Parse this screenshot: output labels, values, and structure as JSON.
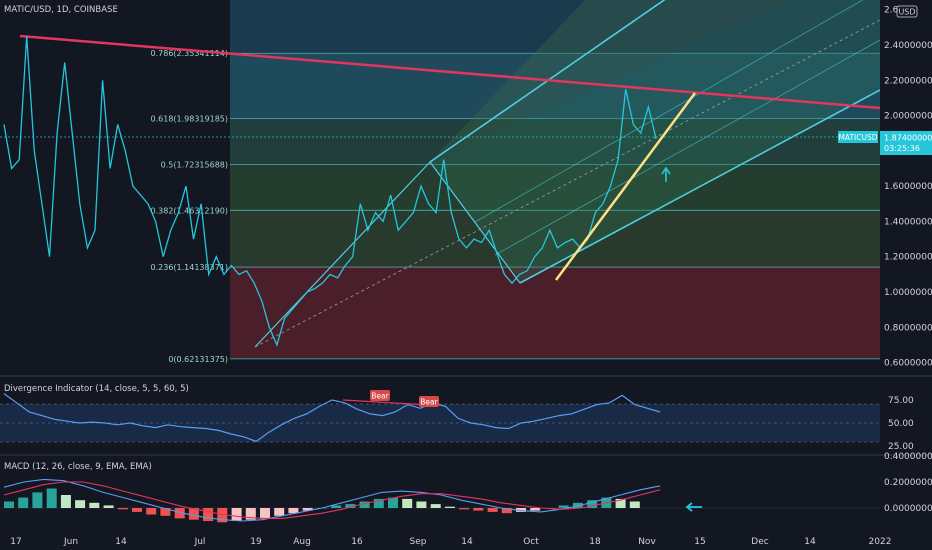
{
  "header": {
    "title": "MATIC/USD, 1D, COINBASE",
    "currency_badge": "USD"
  },
  "price_tag": {
    "symbol": "MATICUSD",
    "price": "1.87400000",
    "countdown": "03:25:36"
  },
  "colors": {
    "background": "#131722",
    "price_line": "#26c6da",
    "trend_line": "#e2365e",
    "channel": "#4dd0e1",
    "highlight_line": "#ffe082",
    "fib_line": "#4dd0c8",
    "red_zone": "#5d1f2b"
  },
  "fib_levels": [
    {
      "label": "0.786(2.35341114)",
      "value": 2.3534
    },
    {
      "label": "0.618(1.98319185)",
      "value": 1.9832
    },
    {
      "label": "0.5(1.72315688)",
      "value": 1.7232
    },
    {
      "label": "0.382(1.46312190)",
      "value": 1.4631
    },
    {
      "label": "0.236(1.14138371)",
      "value": 1.1414
    },
    {
      "label": "0(0.62131375)",
      "value": 0.6213
    }
  ],
  "chart_data": [
    {
      "type": "line",
      "x_ticks": [
        "17",
        "Jun",
        "14",
        "Jul",
        "19",
        "Aug",
        "16",
        "Sep",
        "14",
        "Oct",
        "18",
        "Nov",
        "15",
        "Dec",
        "14",
        "2022"
      ],
      "y_ticks": [
        "2.6",
        "2.40000000",
        "2.20000000",
        "2.00000000",
        "1.80000000",
        "1.60000000",
        "1.40000000",
        "1.20000000",
        "1.00000000",
        "0.80000000",
        "0.60000000"
      ],
      "ylim": [
        0.6,
        2.6
      ],
      "series": [
        {
          "name": "MATIC/USD",
          "values": [
            1.95,
            1.7,
            1.75,
            2.45,
            1.8,
            1.5,
            1.2,
            1.9,
            2.3,
            1.9,
            1.5,
            1.25,
            1.35,
            2.2,
            1.7,
            1.95,
            1.8,
            1.6,
            1.55,
            1.5,
            1.4,
            1.2,
            1.35,
            1.45,
            1.6,
            1.3,
            1.5,
            1.1,
            1.2,
            1.1,
            1.15,
            1.1,
            1.12,
            1.05,
            0.95,
            0.8,
            0.7,
            0.85,
            0.9,
            0.95,
            1.0,
            1.02,
            1.05,
            1.1,
            1.08,
            1.15,
            1.2,
            1.5,
            1.35,
            1.45,
            1.4,
            1.55,
            1.35,
            1.4,
            1.45,
            1.6,
            1.5,
            1.45,
            1.75,
            1.45,
            1.3,
            1.25,
            1.3,
            1.28,
            1.35,
            1.22,
            1.1,
            1.05,
            1.1,
            1.12,
            1.2,
            1.25,
            1.35,
            1.25,
            1.28,
            1.3,
            1.25,
            1.3,
            1.45,
            1.5,
            1.6,
            1.75,
            2.15,
            1.95,
            1.9,
            2.05,
            1.87
          ]
        }
      ],
      "annotations": [
        "0.786(2.35341114)",
        "0.618(1.98319185)",
        "0.5(1.72315688)",
        "0.382(1.46312190)",
        "0.236(1.14138371)",
        "0(0.62131375)"
      ]
    },
    {
      "type": "line",
      "title": "Divergence Indicator (14, close, 5, 5, 60, 5)",
      "y_ticks": [
        "75.00",
        "50.00",
        "25.00"
      ],
      "ylim": [
        20,
        90
      ],
      "series": [
        {
          "name": "Divergence",
          "values": [
            82,
            72,
            62,
            58,
            54,
            52,
            50,
            51,
            50,
            48,
            50,
            47,
            45,
            48,
            46,
            45,
            44,
            42,
            38,
            35,
            30,
            40,
            48,
            55,
            60,
            68,
            75,
            72,
            65,
            60,
            58,
            62,
            70,
            66,
            72,
            68,
            55,
            50,
            48,
            45,
            44,
            50,
            52,
            55,
            58,
            60,
            65,
            70,
            72,
            80,
            70,
            66,
            62
          ]
        }
      ],
      "markers": [
        "Bear",
        "Bear"
      ]
    },
    {
      "type": "bar",
      "title": "MACD (12, 26, close, 9, EMA, EMA)",
      "y_ticks": [
        "0.40000000",
        "0.20000000",
        "0.00000000"
      ],
      "ylim": [
        -0.15,
        0.4
      ],
      "histogram": [
        0.05,
        0.08,
        0.12,
        0.15,
        0.1,
        0.06,
        0.04,
        0.02,
        -0.01,
        -0.03,
        -0.05,
        -0.06,
        -0.08,
        -0.09,
        -0.1,
        -0.11,
        -0.1,
        -0.09,
        -0.08,
        -0.06,
        -0.04,
        -0.02,
        0.0,
        0.02,
        0.03,
        0.05,
        0.07,
        0.08,
        0.07,
        0.05,
        0.03,
        0.01,
        -0.01,
        -0.02,
        -0.03,
        -0.04,
        -0.03,
        -0.02,
        0.0,
        0.02,
        0.04,
        0.06,
        0.08,
        0.07,
        0.05
      ],
      "series": [
        {
          "name": "MACD",
          "values": [
            0.16,
            0.2,
            0.22,
            0.21,
            0.17,
            0.12,
            0.08,
            0.04,
            0.0,
            -0.04,
            -0.07,
            -0.09,
            -0.1,
            -0.09,
            -0.06,
            -0.03,
            0.0,
            0.04,
            0.08,
            0.12,
            0.13,
            0.12,
            0.1,
            0.06,
            0.03,
            0.0,
            -0.02,
            -0.03,
            -0.01,
            0.02,
            0.06,
            0.1,
            0.14,
            0.17
          ]
        },
        {
          "name": "Signal",
          "values": [
            0.1,
            0.14,
            0.18,
            0.2,
            0.2,
            0.17,
            0.13,
            0.09,
            0.05,
            0.01,
            -0.02,
            -0.05,
            -0.07,
            -0.08,
            -0.08,
            -0.06,
            -0.04,
            -0.01,
            0.03,
            0.06,
            0.09,
            0.11,
            0.11,
            0.09,
            0.07,
            0.04,
            0.02,
            0.0,
            -0.01,
            0.0,
            0.03,
            0.06,
            0.1,
            0.14
          ]
        }
      ]
    }
  ]
}
